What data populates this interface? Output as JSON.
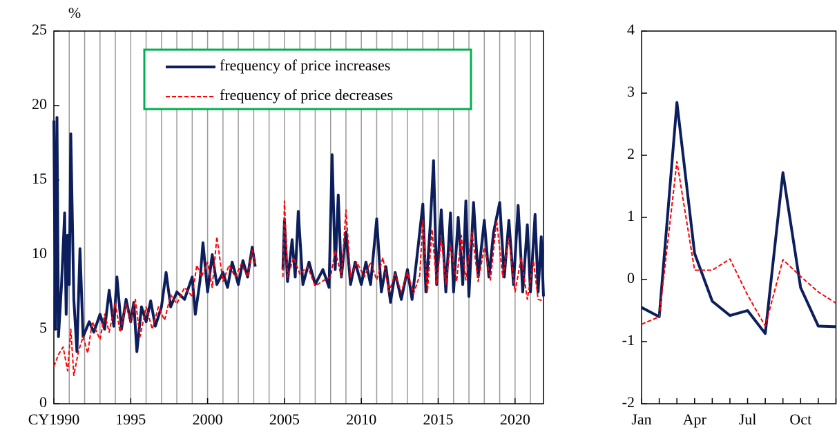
{
  "chart_data": [
    {
      "type": "line",
      "y_label": "%",
      "xlim": [
        1990,
        2021.85
      ],
      "ylim": [
        0,
        25
      ],
      "xticks": [
        {
          "value": 1990,
          "label": "CY1990"
        },
        1995,
        2000,
        2005,
        2010,
        2015,
        2020
      ],
      "xminor_ticks": [
        1991,
        1992,
        1993,
        1994,
        1995,
        1996,
        1997,
        1998,
        1999,
        2000,
        2001,
        2002,
        2003,
        2004,
        2005,
        2006,
        2007,
        2008,
        2009,
        2010,
        2011,
        2012,
        2013,
        2014,
        2015,
        2016,
        2017,
        2018,
        2019,
        2020,
        2021
      ],
      "yticks": [
        0,
        5,
        10,
        15,
        20,
        25
      ],
      "grid": true,
      "legend": "top",
      "series": [
        {
          "name": "frequency of price increases",
          "color": "#0c1e5b",
          "line_style": "solid",
          "x": [
            1990.0,
            1990.1,
            1990.2,
            1990.3,
            1990.5,
            1990.7,
            1990.8,
            1990.9,
            1991.0,
            1991.1,
            1991.3,
            1991.5,
            1991.7,
            1991.9,
            1992.3,
            1992.6,
            1993.0,
            1993.3,
            1993.6,
            1993.9,
            1994.1,
            1994.4,
            1994.7,
            1995.0,
            1995.2,
            1995.4,
            1995.7,
            1996.0,
            1996.3,
            1996.6,
            1997.0,
            1997.3,
            1997.6,
            1998.0,
            1998.5,
            1999.0,
            1999.2,
            1999.5,
            1999.7,
            2000.0,
            2000.3,
            2000.6,
            2001.0,
            2001.3,
            2001.6,
            2002.0,
            2002.3,
            2002.6,
            2002.9,
            2003.1,
            2004.0,
            2004.9,
            2005.0,
            2005.2,
            2005.5,
            2005.7,
            2005.9,
            2006.2,
            2006.6,
            2007.0,
            2007.5,
            2007.9,
            2008.1,
            2008.3,
            2008.5,
            2008.7,
            2009.0,
            2009.3,
            2009.6,
            2010.0,
            2010.3,
            2010.6,
            2011.0,
            2011.3,
            2011.6,
            2011.9,
            2012.2,
            2012.6,
            2013.0,
            2013.3,
            2013.6,
            2014.0,
            2014.2,
            2014.5,
            2014.7,
            2014.9,
            2015.2,
            2015.5,
            2015.8,
            2016.0,
            2016.3,
            2016.6,
            2016.8,
            2017.0,
            2017.3,
            2017.6,
            2018.0,
            2018.3,
            2018.6,
            2019.0,
            2019.3,
            2019.6,
            2019.9,
            2020.2,
            2020.5,
            2020.8,
            2021.0,
            2021.3,
            2021.5,
            2021.7,
            2021.85
          ],
          "values": [
            19.0,
            5,
            19.2,
            4.5,
            8,
            12.8,
            6,
            11.3,
            8,
            18.1,
            7,
            3.5,
            10.4,
            4.5,
            5.5,
            4.8,
            6,
            5,
            7.6,
            5.2,
            8.5,
            5,
            7,
            5.5,
            6.8,
            3.5,
            6.5,
            5.5,
            6.9,
            5.2,
            6.5,
            8.8,
            6.5,
            7.5,
            7,
            8.5,
            6,
            8.2,
            10.8,
            7.5,
            10,
            8,
            8.8,
            7.8,
            9.5,
            8,
            9.6,
            8.5,
            10.5,
            9.2,
            null,
            9,
            12.3,
            8.2,
            11,
            8.5,
            12.9,
            8,
            9.5,
            8,
            9,
            7.8,
            16.7,
            9,
            14,
            8.5,
            11.5,
            8,
            9.5,
            8,
            9.5,
            8,
            12.4,
            7.5,
            9.2,
            6.8,
            8.8,
            7,
            9,
            7,
            9.7,
            13.4,
            7.5,
            12.3,
            16.3,
            8,
            13,
            7.5,
            12.8,
            7.5,
            12.5,
            8,
            13.6,
            7.2,
            13.5,
            8.5,
            12.3,
            8.5,
            11.5,
            13.5,
            8.5,
            12.3,
            8,
            13.3,
            7.5,
            12,
            7.5,
            12.7,
            7.5,
            11.2,
            7.2
          ]
        },
        {
          "name": "frequency of price decreases",
          "color": "#ff0000",
          "line_style": "dashed",
          "x": [
            1990.0,
            1990.3,
            1990.6,
            1990.9,
            1991.1,
            1991.3,
            1991.6,
            1991.9,
            1992.2,
            1992.5,
            1993.0,
            1993.3,
            1993.6,
            1994.0,
            1994.3,
            1994.7,
            1995.0,
            1995.3,
            1995.6,
            1996.0,
            1996.4,
            1996.8,
            1997.2,
            1997.6,
            1998.0,
            1998.5,
            1999.0,
            1999.3,
            1999.6,
            2000.0,
            2000.3,
            2000.6,
            2001.0,
            2001.4,
            2001.8,
            2002.2,
            2002.6,
            2002.9,
            2003.1,
            2004.0,
            2004.9,
            2005.0,
            2005.2,
            2005.6,
            2006.0,
            2006.5,
            2007.0,
            2007.6,
            2008.0,
            2008.3,
            2008.7,
            2009.0,
            2009.3,
            2009.7,
            2010.2,
            2010.6,
            2011.0,
            2011.4,
            2011.8,
            2012.2,
            2012.6,
            2013.0,
            2013.4,
            2013.8,
            2014.0,
            2014.3,
            2014.6,
            2014.9,
            2015.2,
            2015.5,
            2015.8,
            2016.2,
            2016.5,
            2016.8,
            2017.2,
            2017.6,
            2018.0,
            2018.4,
            2018.8,
            2019.2,
            2019.6,
            2020.0,
            2020.4,
            2020.8,
            2021.2,
            2021.5,
            2021.85
          ],
          "values": [
            2.5,
            3.3,
            3.8,
            2.2,
            5,
            1.9,
            3.5,
            4.5,
            3.4,
            5.5,
            4.3,
            6,
            4.8,
            6.8,
            4.8,
            6.7,
            5.5,
            7,
            4.5,
            6.5,
            5,
            6.5,
            5.6,
            7.3,
            6.7,
            7.8,
            7.2,
            9.3,
            8.5,
            9.5,
            7.8,
            11.2,
            8.2,
            9.3,
            8.5,
            9.4,
            8.5,
            10.3,
            9.4,
            null,
            8.5,
            13.6,
            8.5,
            9.8,
            8.7,
            9.2,
            7.9,
            8.3,
            8.5,
            10.3,
            8.5,
            13,
            8.5,
            9.5,
            8.5,
            9.5,
            8.3,
            9.8,
            7.5,
            8.7,
            7.5,
            8.8,
            7.4,
            8.6,
            12.3,
            7.5,
            11.7,
            8,
            11.1,
            8,
            10.6,
            8.2,
            11.3,
            8.3,
            11.5,
            8.2,
            10.5,
            8.3,
            12.3,
            8.5,
            11.1,
            7.5,
            9.8,
            7,
            9.6,
            7,
            6.9
          ]
        }
      ]
    },
    {
      "type": "line",
      "categories": [
        "Jan",
        null,
        null,
        "Apr",
        null,
        null,
        "Jul",
        null,
        null,
        "Oct",
        null,
        null
      ],
      "ylim": [
        -2,
        4
      ],
      "yticks": [
        -2,
        -1,
        0,
        1,
        2,
        3,
        4
      ],
      "series": [
        {
          "color": "#0c1e5b",
          "line_style": "solid",
          "values": [
            -0.45,
            -0.6,
            2.85,
            0.42,
            -0.35,
            -0.58,
            -0.5,
            -0.87,
            1.72,
            -0.13,
            -0.75,
            -0.76
          ]
        },
        {
          "color": "#ff0000",
          "line_style": "dashed",
          "values": [
            -0.72,
            -0.6,
            1.9,
            0.15,
            0.15,
            0.33,
            -0.25,
            -0.75,
            0.32,
            0.05,
            -0.2,
            -0.38
          ]
        }
      ]
    }
  ]
}
